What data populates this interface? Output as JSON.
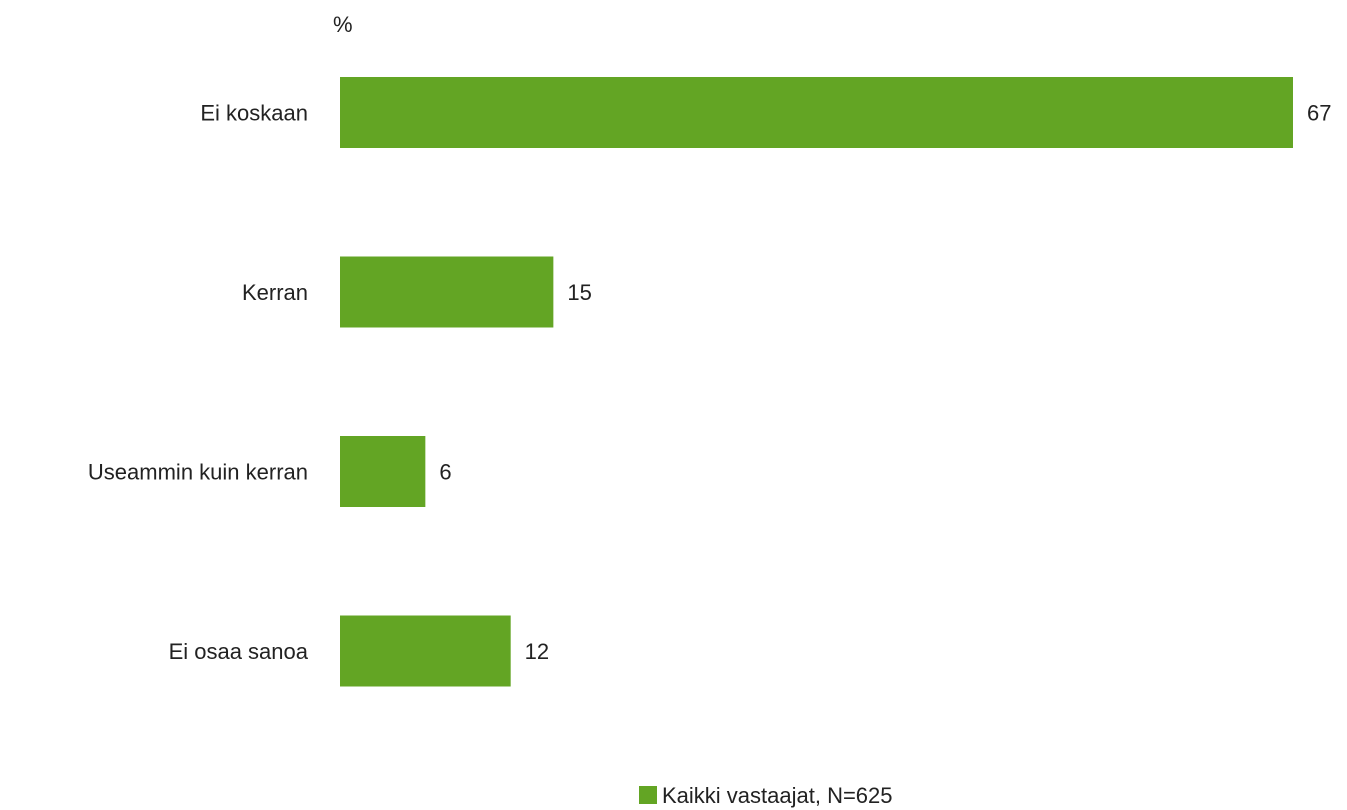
{
  "chart_data": {
    "type": "bar",
    "orientation": "horizontal",
    "unit_label": "%",
    "categories": [
      "Ei koskaan",
      "Kerran",
      "Useammin kuin kerran",
      "Ei osaa sanoa"
    ],
    "series": [
      {
        "name": "Kaikki vastaajat, N=625",
        "values": [
          67,
          15,
          6,
          12
        ],
        "value_labels": [
          "67",
          "15",
          "6",
          "12"
        ],
        "color": "#63a524"
      }
    ],
    "xlim": [
      0,
      67
    ],
    "grid": false,
    "legend_position": "bottom"
  }
}
